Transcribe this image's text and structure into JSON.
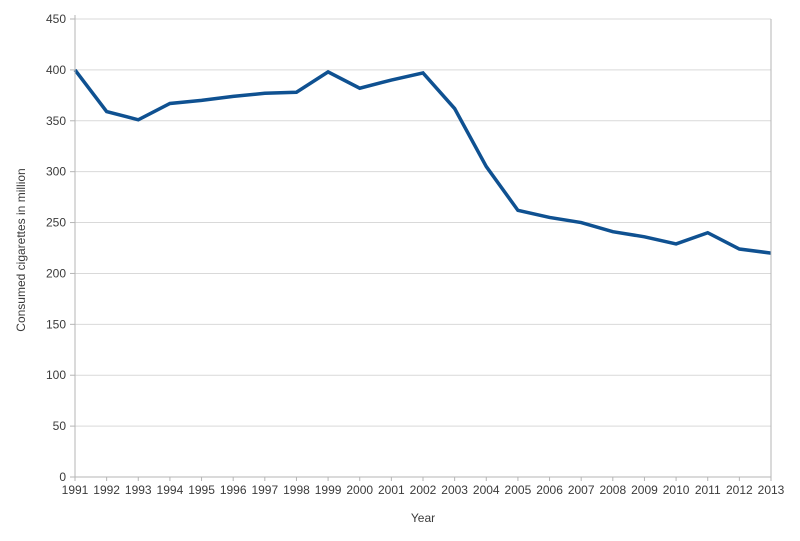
{
  "chart": {
    "x_axis_title": "Year",
    "y_axis_title": "Consumed cigarettes in million"
  },
  "chart_data": {
    "type": "line",
    "title": "",
    "xlabel": "Year",
    "ylabel": "Consumed cigarettes in million",
    "x": [
      1991,
      1992,
      1993,
      1994,
      1995,
      1996,
      1997,
      1998,
      1999,
      2000,
      2001,
      2002,
      2003,
      2004,
      2005,
      2006,
      2007,
      2008,
      2009,
      2010,
      2011,
      2012,
      2013
    ],
    "values": [
      400,
      359,
      351,
      367,
      370,
      374,
      377,
      378,
      398,
      382,
      390,
      397,
      362,
      305,
      262,
      255,
      250,
      241,
      236,
      229,
      240,
      224,
      220
    ],
    "ylim": [
      0,
      450
    ],
    "ytick_step": 50,
    "grid": true,
    "legend_position": "none",
    "line_color": "#0f5191",
    "grid_color": "#d9d9d9",
    "axis_color": "#b5b5b5",
    "text_color": "#3b3b3b",
    "background": "#ffffff"
  }
}
